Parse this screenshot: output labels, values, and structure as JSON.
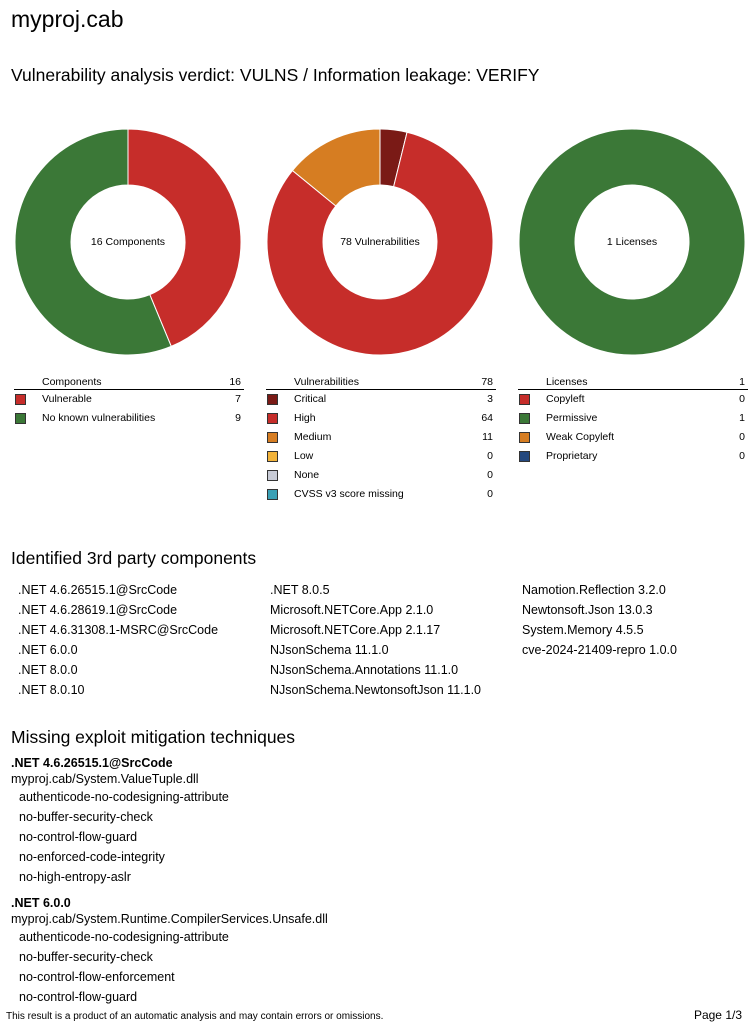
{
  "title": "myproj.cab",
  "verdict": "Vulnerability analysis verdict: VULNS / Information leakage: VERIFY",
  "colors": {
    "red": "#c62d2a",
    "dark_red": "#7a1a16",
    "green": "#3b7837",
    "orange": "#d67d22",
    "yellow": "#f2b33a",
    "grey": "#c8cbd6",
    "teal": "#3aa0b5",
    "navy": "#24487e"
  },
  "charts": [
    {
      "center_label": "16 Components",
      "header_label": "Components",
      "header_total": "16",
      "items": [
        {
          "label": "Vulnerable",
          "count": 7,
          "color": "#c62d2a"
        },
        {
          "label": "No known vulnerabilities",
          "count": 9,
          "color": "#3b7837"
        }
      ]
    },
    {
      "center_label": "78 Vulnerabilities",
      "header_label": "Vulnerabilities",
      "header_total": "78",
      "items": [
        {
          "label": "Critical",
          "count": 3,
          "color": "#7a1a16"
        },
        {
          "label": "High",
          "count": 64,
          "color": "#c62d2a"
        },
        {
          "label": "Medium",
          "count": 11,
          "color": "#d67d22"
        },
        {
          "label": "Low",
          "count": 0,
          "color": "#f2b33a"
        },
        {
          "label": "None",
          "count": 0,
          "color": "#c8cbd6"
        },
        {
          "label": "CVSS v3 score missing",
          "count": 0,
          "color": "#3aa0b5"
        }
      ]
    },
    {
      "center_label": "1 Licenses",
      "header_label": "Licenses",
      "header_total": "1",
      "items": [
        {
          "label": "Copyleft",
          "count": 0,
          "color": "#c62d2a"
        },
        {
          "label": "Permissive",
          "count": 1,
          "color": "#3b7837"
        },
        {
          "label": "Weak Copyleft",
          "count": 0,
          "color": "#d67d22"
        },
        {
          "label": "Proprietary",
          "count": 0,
          "color": "#24487e"
        }
      ]
    }
  ],
  "components_heading": "Identified 3rd party components",
  "components": [
    [
      ".NET 4.6.26515.1@SrcCode",
      ".NET 4.6.28619.1@SrcCode",
      ".NET 4.6.31308.1-MSRC@SrcCode",
      ".NET 6.0.0",
      ".NET 8.0.0",
      ".NET 8.0.10"
    ],
    [
      ".NET 8.0.5",
      "Microsoft.NETCore.App 2.1.0",
      "Microsoft.NETCore.App 2.1.17",
      "NJsonSchema 11.1.0",
      "NJsonSchema.Annotations 11.1.0",
      "NJsonSchema.NewtonsoftJson 11.1.0"
    ],
    [
      "Namotion.Reflection 3.2.0",
      "Newtonsoft.Json 13.0.3",
      "System.Memory 4.5.5",
      "cve-2024-21409-repro 1.0.0"
    ]
  ],
  "mitigation_heading": "Missing exploit mitigation techniques",
  "mitigation_groups": [
    {
      "component": ".NET 4.6.26515.1@SrcCode",
      "path": "myproj.cab/System.ValueTuple.dll",
      "techniques": [
        "authenticode-no-codesigning-attribute",
        "no-buffer-security-check",
        "no-control-flow-guard",
        "no-enforced-code-integrity",
        "no-high-entropy-aslr"
      ]
    },
    {
      "component": ".NET 6.0.0",
      "path": "myproj.cab/System.Runtime.CompilerServices.Unsafe.dll",
      "techniques": [
        "authenticode-no-codesigning-attribute",
        "no-buffer-security-check",
        "no-control-flow-enforcement",
        "no-control-flow-guard"
      ]
    }
  ],
  "footer_note": "This result is a product of an automatic analysis and may contain errors or omissions.",
  "page_label": "Page 1/3"
}
